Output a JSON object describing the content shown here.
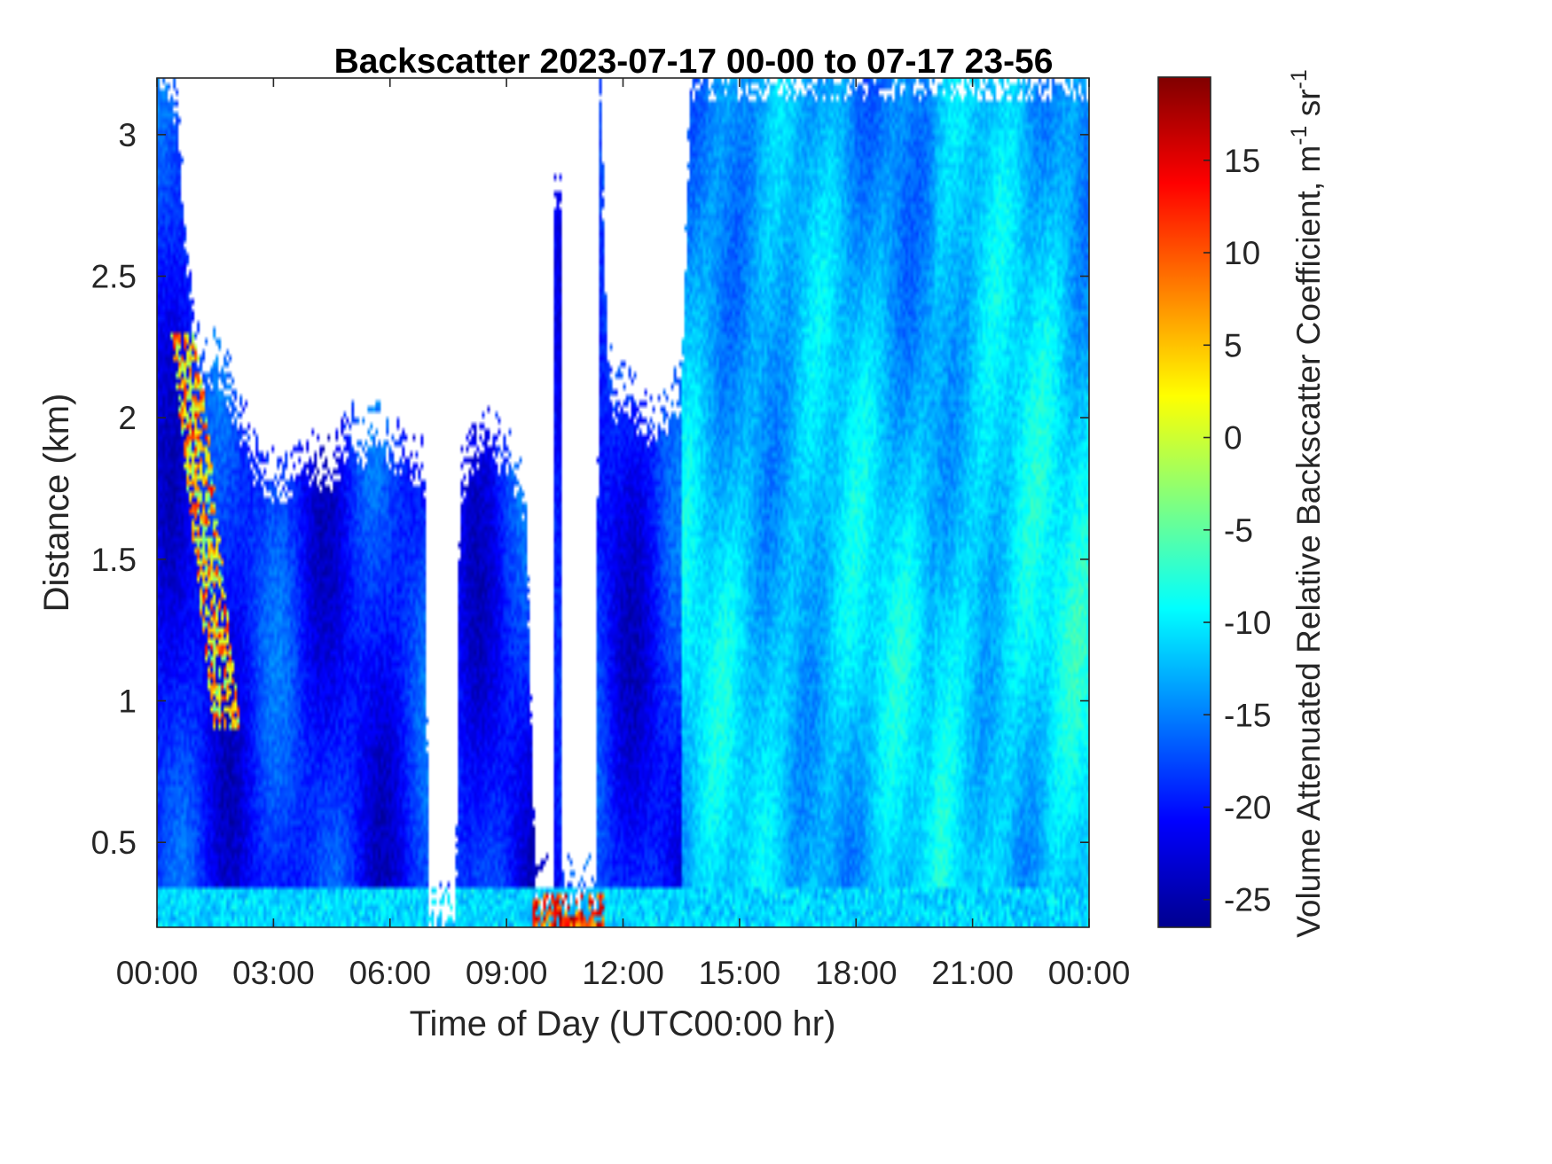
{
  "chart_data": {
    "type": "heatmap",
    "title": "Backscatter 2023-07-17 00-00 to 07-17 23-56",
    "xlabel": "Time of Day (UTC00:00 hr)",
    "ylabel": "Distance (km)",
    "colorbar_label": "Volume Attenuated Relative Backscatter Coefficient, m",
    "colorbar_units_sup1": "-1",
    "colorbar_units_mid": " sr",
    "colorbar_units_sup2": "-1",
    "x_unit": "hours",
    "xlim": [
      0,
      24
    ],
    "ylim": [
      0.2,
      3.2
    ],
    "clim": [
      -26.5,
      19.5
    ],
    "colormap": "jet",
    "x_ticks": [
      {
        "value": 0,
        "label": "00:00"
      },
      {
        "value": 3,
        "label": "03:00"
      },
      {
        "value": 6,
        "label": "06:00"
      },
      {
        "value": 9,
        "label": "09:00"
      },
      {
        "value": 12,
        "label": "12:00"
      },
      {
        "value": 15,
        "label": "15:00"
      },
      {
        "value": 18,
        "label": "18:00"
      },
      {
        "value": 21,
        "label": "21:00"
      },
      {
        "value": 24,
        "label": "00:00"
      }
    ],
    "y_ticks": [
      {
        "value": 0.5,
        "label": "0.5"
      },
      {
        "value": 1,
        "label": "1"
      },
      {
        "value": 1.5,
        "label": "1.5"
      },
      {
        "value": 2,
        "label": "2"
      },
      {
        "value": 2.5,
        "label": "2.5"
      },
      {
        "value": 3,
        "label": "3"
      }
    ],
    "colorbar_ticks": [
      {
        "value": -25,
        "label": "-25"
      },
      {
        "value": -20,
        "label": "-20"
      },
      {
        "value": -15,
        "label": "-15"
      },
      {
        "value": -10,
        "label": "-10"
      },
      {
        "value": -5,
        "label": "-5"
      },
      {
        "value": 0,
        "label": "0"
      },
      {
        "value": 5,
        "label": "5"
      },
      {
        "value": 10,
        "label": "10"
      },
      {
        "value": 15,
        "label": "15"
      }
    ],
    "valid_data_top_km": [
      [
        0.0,
        3.2
      ],
      [
        0.25,
        3.2
      ],
      [
        0.5,
        3.1
      ],
      [
        0.75,
        2.6
      ],
      [
        1.0,
        2.3
      ],
      [
        1.25,
        2.15
      ],
      [
        1.5,
        2.2
      ],
      [
        1.75,
        2.15
      ],
      [
        2.0,
        2.05
      ],
      [
        2.25,
        1.95
      ],
      [
        2.5,
        1.85
      ],
      [
        2.75,
        1.8
      ],
      [
        3.0,
        1.78
      ],
      [
        3.2,
        1.75
      ],
      [
        3.5,
        1.8
      ],
      [
        3.75,
        1.82
      ],
      [
        4.0,
        1.85
      ],
      [
        4.25,
        1.8
      ],
      [
        4.5,
        1.82
      ],
      [
        4.75,
        1.88
      ],
      [
        5.0,
        1.95
      ],
      [
        5.25,
        1.9
      ],
      [
        5.5,
        1.92
      ],
      [
        5.75,
        1.95
      ],
      [
        6.0,
        1.9
      ],
      [
        6.25,
        1.88
      ],
      [
        6.5,
        1.85
      ],
      [
        6.75,
        1.82
      ],
      [
        6.9,
        1.8
      ],
      [
        7.0,
        0.25
      ],
      [
        7.7,
        0.25
      ],
      [
        7.8,
        1.75
      ],
      [
        8.0,
        1.85
      ],
      [
        8.25,
        1.9
      ],
      [
        8.5,
        1.95
      ],
      [
        8.75,
        1.9
      ],
      [
        9.0,
        1.85
      ],
      [
        9.25,
        1.8
      ],
      [
        9.5,
        1.7
      ],
      [
        9.75,
        0.35
      ],
      [
        10.2,
        0.35
      ],
      [
        10.25,
        2.8
      ],
      [
        10.4,
        2.8
      ],
      [
        10.45,
        0.35
      ],
      [
        11.3,
        0.35
      ],
      [
        11.4,
        3.2
      ],
      [
        11.6,
        2.2
      ],
      [
        11.8,
        2.05
      ],
      [
        12.0,
        2.1
      ],
      [
        12.25,
        2.05
      ],
      [
        12.5,
        2.0
      ],
      [
        12.75,
        1.98
      ],
      [
        13.0,
        2.0
      ],
      [
        13.25,
        2.05
      ],
      [
        13.5,
        2.1
      ],
      [
        13.75,
        3.2
      ],
      [
        24.0,
        3.2
      ]
    ],
    "features": [
      {
        "name": "surface aerosol layer",
        "x_range": [
          0,
          24
        ],
        "top_km": 0.35,
        "typical_value": -13
      },
      {
        "name": "night boundary layer",
        "x_range": [
          0.25,
          9.5
        ],
        "top_km": 1.8,
        "typical_value": -19
      },
      {
        "name": "convective mixed layer",
        "x_range": [
          13.5,
          24
        ],
        "top_km": 3.2,
        "typical_value": -12
      },
      {
        "name": "aerosol plume streak",
        "x_range": [
          0.7,
          2.0
        ],
        "height_range_km": [
          2.3,
          0.9
        ],
        "peak_value": 15
      },
      {
        "name": "near-surface hotspot",
        "x_range": [
          9.7,
          11.5
        ],
        "height_range_km": [
          0.2,
          0.35
        ],
        "peak_value": 18
      }
    ]
  }
}
